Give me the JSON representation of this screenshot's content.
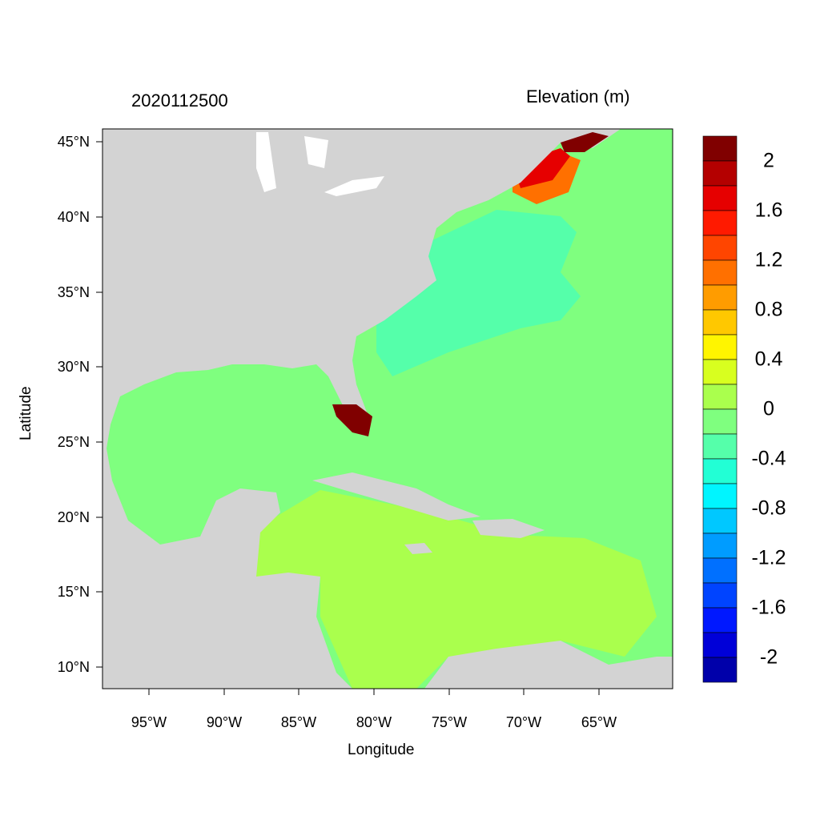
{
  "date_label": "2020112500",
  "colorbar": {
    "title": "Elevation (m)",
    "labels": [
      "2",
      "1.6",
      "1.2",
      "0.8",
      "0.4",
      "0",
      "-0.4",
      "-0.8",
      "-1.2",
      "-1.6",
      "-2"
    ],
    "colors": [
      "#800000",
      "#b40000",
      "#e60000",
      "#ff1a00",
      "#ff4500",
      "#ff7000",
      "#ff9c00",
      "#ffc800",
      "#fff500",
      "#d8ff1f",
      "#aaff4d",
      "#7fff7f",
      "#55ffaa",
      "#22ffd5",
      "#00f5ff",
      "#00c8ff",
      "#009cff",
      "#0070ff",
      "#0044ff",
      "#0018ff",
      "#0000d8",
      "#0000aa"
    ]
  },
  "axes": {
    "xlabel": "Longitude",
    "ylabel": "Latitude",
    "xticks": [
      "95°W",
      "90°W",
      "85°W",
      "80°W",
      "75°W",
      "70°W",
      "65°W"
    ],
    "yticks": [
      "45°N",
      "40°N",
      "35°N",
      "30°N",
      "25°N",
      "20°N",
      "15°N",
      "10°N"
    ]
  },
  "map_colors": {
    "land": "#d3d3d3",
    "gulf": "#7fff7f",
    "caribbean": "#aaff4d",
    "atlantic": "#55ffaa",
    "lakes": "#ffffff"
  }
}
